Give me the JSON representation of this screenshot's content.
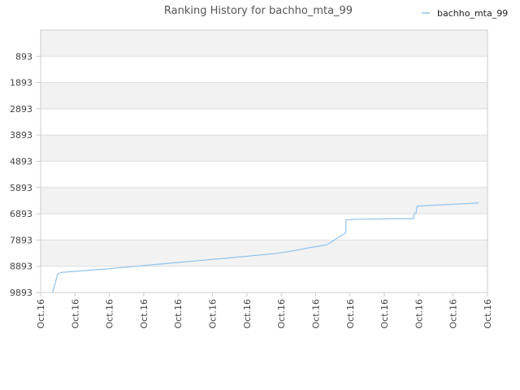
{
  "chart_data": {
    "type": "line",
    "title": "Ranking History for bachho_mta_99",
    "colors": {
      "line": "#8fc3ef",
      "band": "#f2f2f2",
      "grid": "#dddddd",
      "axis": "#cccccc"
    },
    "y_axis": {
      "reversed": true,
      "ylim": [
        9893,
        -107
      ],
      "ticks": [
        893,
        1893,
        2893,
        3893,
        4893,
        5893,
        6893,
        7893,
        8893,
        9893
      ]
    },
    "x_ticks": [
      "Oct.16",
      "Oct.16",
      "Oct.16",
      "Oct.16",
      "Oct.16",
      "Oct.16",
      "Oct.16",
      "Oct.16",
      "Oct.16",
      "Oct.16",
      "Oct.16",
      "Oct.16",
      "Oct.16",
      "Oct.16"
    ],
    "grid": true,
    "legend": {
      "position": "top-right"
    },
    "series": [
      {
        "name": "bachho_mta_99",
        "x": [
          0.027,
          0.038,
          0.045,
          0.15,
          0.3,
          0.45,
          0.53,
          0.57,
          0.61,
          0.64,
          0.68,
          0.683,
          0.683,
          0.71,
          0.76,
          0.78,
          0.835,
          0.835,
          0.84,
          0.843,
          0.9,
          0.96,
          0.98
        ],
        "y": [
          9893,
          9200,
          9130,
          8990,
          8760,
          8530,
          8400,
          8290,
          8160,
          8080,
          7650,
          7600,
          7130,
          7100,
          7090,
          7080,
          7080,
          6930,
          6850,
          6600,
          6550,
          6500,
          6480
        ]
      }
    ]
  }
}
